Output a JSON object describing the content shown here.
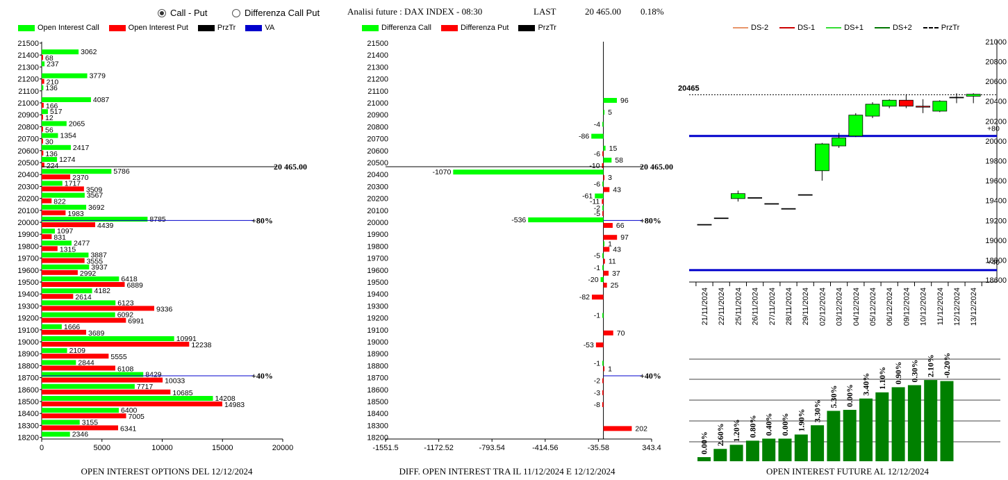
{
  "header": {
    "radio1": "Call - Put",
    "radio2": "Differenza Call Put",
    "analysis": "Analisi future : DAX INDEX - 08:30",
    "last_label": "LAST",
    "last_value": "20 465.00",
    "pct": "0.18%"
  },
  "legends": {
    "oi": [
      "Open Interest Call",
      "Open Interest Put",
      "PrzTr",
      "VA"
    ],
    "diff": [
      "Differenza Call",
      "Differenza Put",
      "PrzTr"
    ],
    "candle": [
      "DS-2",
      "DS-1",
      "DS+1",
      "DS+2",
      "PrzTr"
    ]
  },
  "colors": {
    "call": "#00ff00",
    "put": "#ff0000",
    "va": "#0000cc",
    "bar": "#008000",
    "ds2": "#e8956a",
    "ds1": "#cc0000",
    "dsp1": "#33dd33",
    "dsp2": "#007700"
  },
  "titles": {
    "oi": "OPEN INTEREST OPTIONS DEL 12/12/2024",
    "diff": "DIFF. OPEN INTEREST TRA IL 11/12/2024 E 12/12/2024",
    "future": "OPEN INTEREST FUTURE AL 12/12/2024"
  },
  "chart_data": [
    {
      "type": "bar",
      "strikes": [
        21500,
        21400,
        21300,
        21200,
        21100,
        21000,
        20900,
        20800,
        20700,
        20600,
        20500,
        20400,
        20300,
        20200,
        20100,
        20000,
        19900,
        19800,
        19700,
        19600,
        19500,
        19400,
        19300,
        19200,
        19100,
        19000,
        18900,
        18800,
        18700,
        18600,
        18500,
        18400,
        18300,
        18200
      ],
      "call": [
        null,
        3062,
        237,
        3779,
        136,
        4087,
        517,
        2065,
        1354,
        2417,
        1274,
        5786,
        1717,
        3567,
        3692,
        8785,
        1097,
        2477,
        3887,
        3937,
        6418,
        4182,
        6123,
        6092,
        1666,
        10991,
        2109,
        2844,
        8429,
        7717,
        14208,
        6400,
        3155,
        2346
      ],
      "put": [
        null,
        68,
        null,
        210,
        null,
        166,
        12,
        56,
        30,
        136,
        224,
        2370,
        3509,
        822,
        1983,
        4439,
        831,
        1315,
        3555,
        2992,
        6889,
        2614,
        9336,
        6991,
        3689,
        12238,
        5555,
        6108,
        10033,
        10685,
        14983,
        7005,
        6341,
        null
      ],
      "xticks": [
        "0",
        "5000",
        "10000",
        "15000",
        "20000"
      ],
      "xlim": [
        0,
        20000
      ],
      "lines": [
        {
          "label": "20 465.00",
          "at": 20465
        },
        {
          "label": "80%",
          "at": 20015
        },
        {
          "label": "40%",
          "at": 18715
        }
      ]
    },
    {
      "type": "bar",
      "strikes": [
        21500,
        21400,
        21300,
        21200,
        21100,
        21000,
        20900,
        20800,
        20700,
        20600,
        20500,
        20400,
        20300,
        20200,
        20100,
        20000,
        19900,
        19800,
        19700,
        19600,
        19500,
        19400,
        19300,
        19200,
        19100,
        19000,
        18900,
        18800,
        18700,
        18600,
        18500,
        18400,
        18300,
        18200
      ],
      "diff_call": [
        null,
        null,
        null,
        null,
        null,
        96,
        5,
        -4,
        -86,
        15,
        58,
        -1070,
        -6,
        -61,
        -2,
        -536,
        null,
        1,
        -5,
        -1,
        -20,
        null,
        null,
        -1,
        null,
        null,
        null,
        -1,
        null,
        null,
        null,
        null,
        null,
        null
      ],
      "diff_put": [
        null,
        null,
        null,
        null,
        null,
        null,
        null,
        null,
        null,
        -6,
        -10,
        3,
        43,
        -11,
        -5,
        66,
        97,
        43,
        11,
        37,
        25,
        -82,
        null,
        null,
        70,
        -53,
        null,
        1,
        -2,
        -3,
        -8,
        null,
        202,
        null
      ],
      "xticks": [
        "-1551.5",
        "-1172.52",
        "-793.54",
        "-414.56",
        "-35.58",
        "343.4"
      ],
      "xlim": [
        -1551.5,
        343.4
      ],
      "lines": [
        {
          "label": "20 465.00",
          "at": 20465
        },
        {
          "label": "80%",
          "at": 20015
        },
        {
          "label": "40%",
          "at": 18715
        }
      ]
    },
    {
      "type": "candlestick",
      "dates": [
        "21/11/2024",
        "22/11/2024",
        "25/11/2024",
        "26/11/2024",
        "27/11/2024",
        "28/11/2024",
        "29/11/2024",
        "02/12/2024",
        "03/12/2024",
        "04/12/2024",
        "05/12/2024",
        "06/12/2024",
        "09/12/2024",
        "10/12/2024",
        "11/12/2024",
        "12/12/2024",
        "13/12/2024"
      ],
      "open": [
        19160,
        19225,
        19420,
        19430,
        19370,
        19320,
        19460,
        19700,
        19950,
        20050,
        20250,
        20350,
        20410,
        20350,
        20300,
        20440,
        20450
      ],
      "close": [
        19160,
        19225,
        19470,
        19430,
        19370,
        19320,
        19460,
        19970,
        20030,
        20260,
        20370,
        20410,
        20350,
        20340,
        20400,
        20440,
        20470
      ],
      "high": [
        19160,
        19225,
        19500,
        19430,
        19370,
        19320,
        19460,
        19980,
        20080,
        20280,
        20390,
        20420,
        20470,
        20420,
        20410,
        20480,
        20480
      ],
      "low": [
        19160,
        19225,
        19390,
        19430,
        19370,
        19320,
        19460,
        19600,
        19930,
        20040,
        20230,
        20330,
        20330,
        20280,
        20290,
        20380,
        20380
      ],
      "yticks": [
        "18600",
        "18800",
        "19000",
        "19200",
        "19400",
        "19600",
        "19800",
        "20000",
        "20200",
        "20400",
        "20600",
        "20800",
        "21000"
      ],
      "ylim": [
        18580,
        21020
      ],
      "last_label": "20465",
      "last": 20465,
      "levels": [
        {
          "label": "+80",
          "at": 20050
        },
        {
          "label": "+40",
          "at": 18700
        }
      ]
    },
    {
      "type": "bar",
      "values": [
        4,
        12,
        16,
        20,
        22,
        22,
        26,
        35,
        49,
        50,
        61,
        67,
        72,
        74,
        79,
        78
      ],
      "labels": [
        "0.00%",
        "2.60%",
        "1.20%",
        "0.80%",
        "0.40%",
        "0.00%",
        "1.90%",
        "3.30%",
        "5.30%",
        "0.00%",
        "3.40%",
        "1.10%",
        "0.90%",
        "0.30%",
        "2.10%",
        "-0.20%"
      ],
      "ylim": [
        0,
        100
      ]
    }
  ]
}
